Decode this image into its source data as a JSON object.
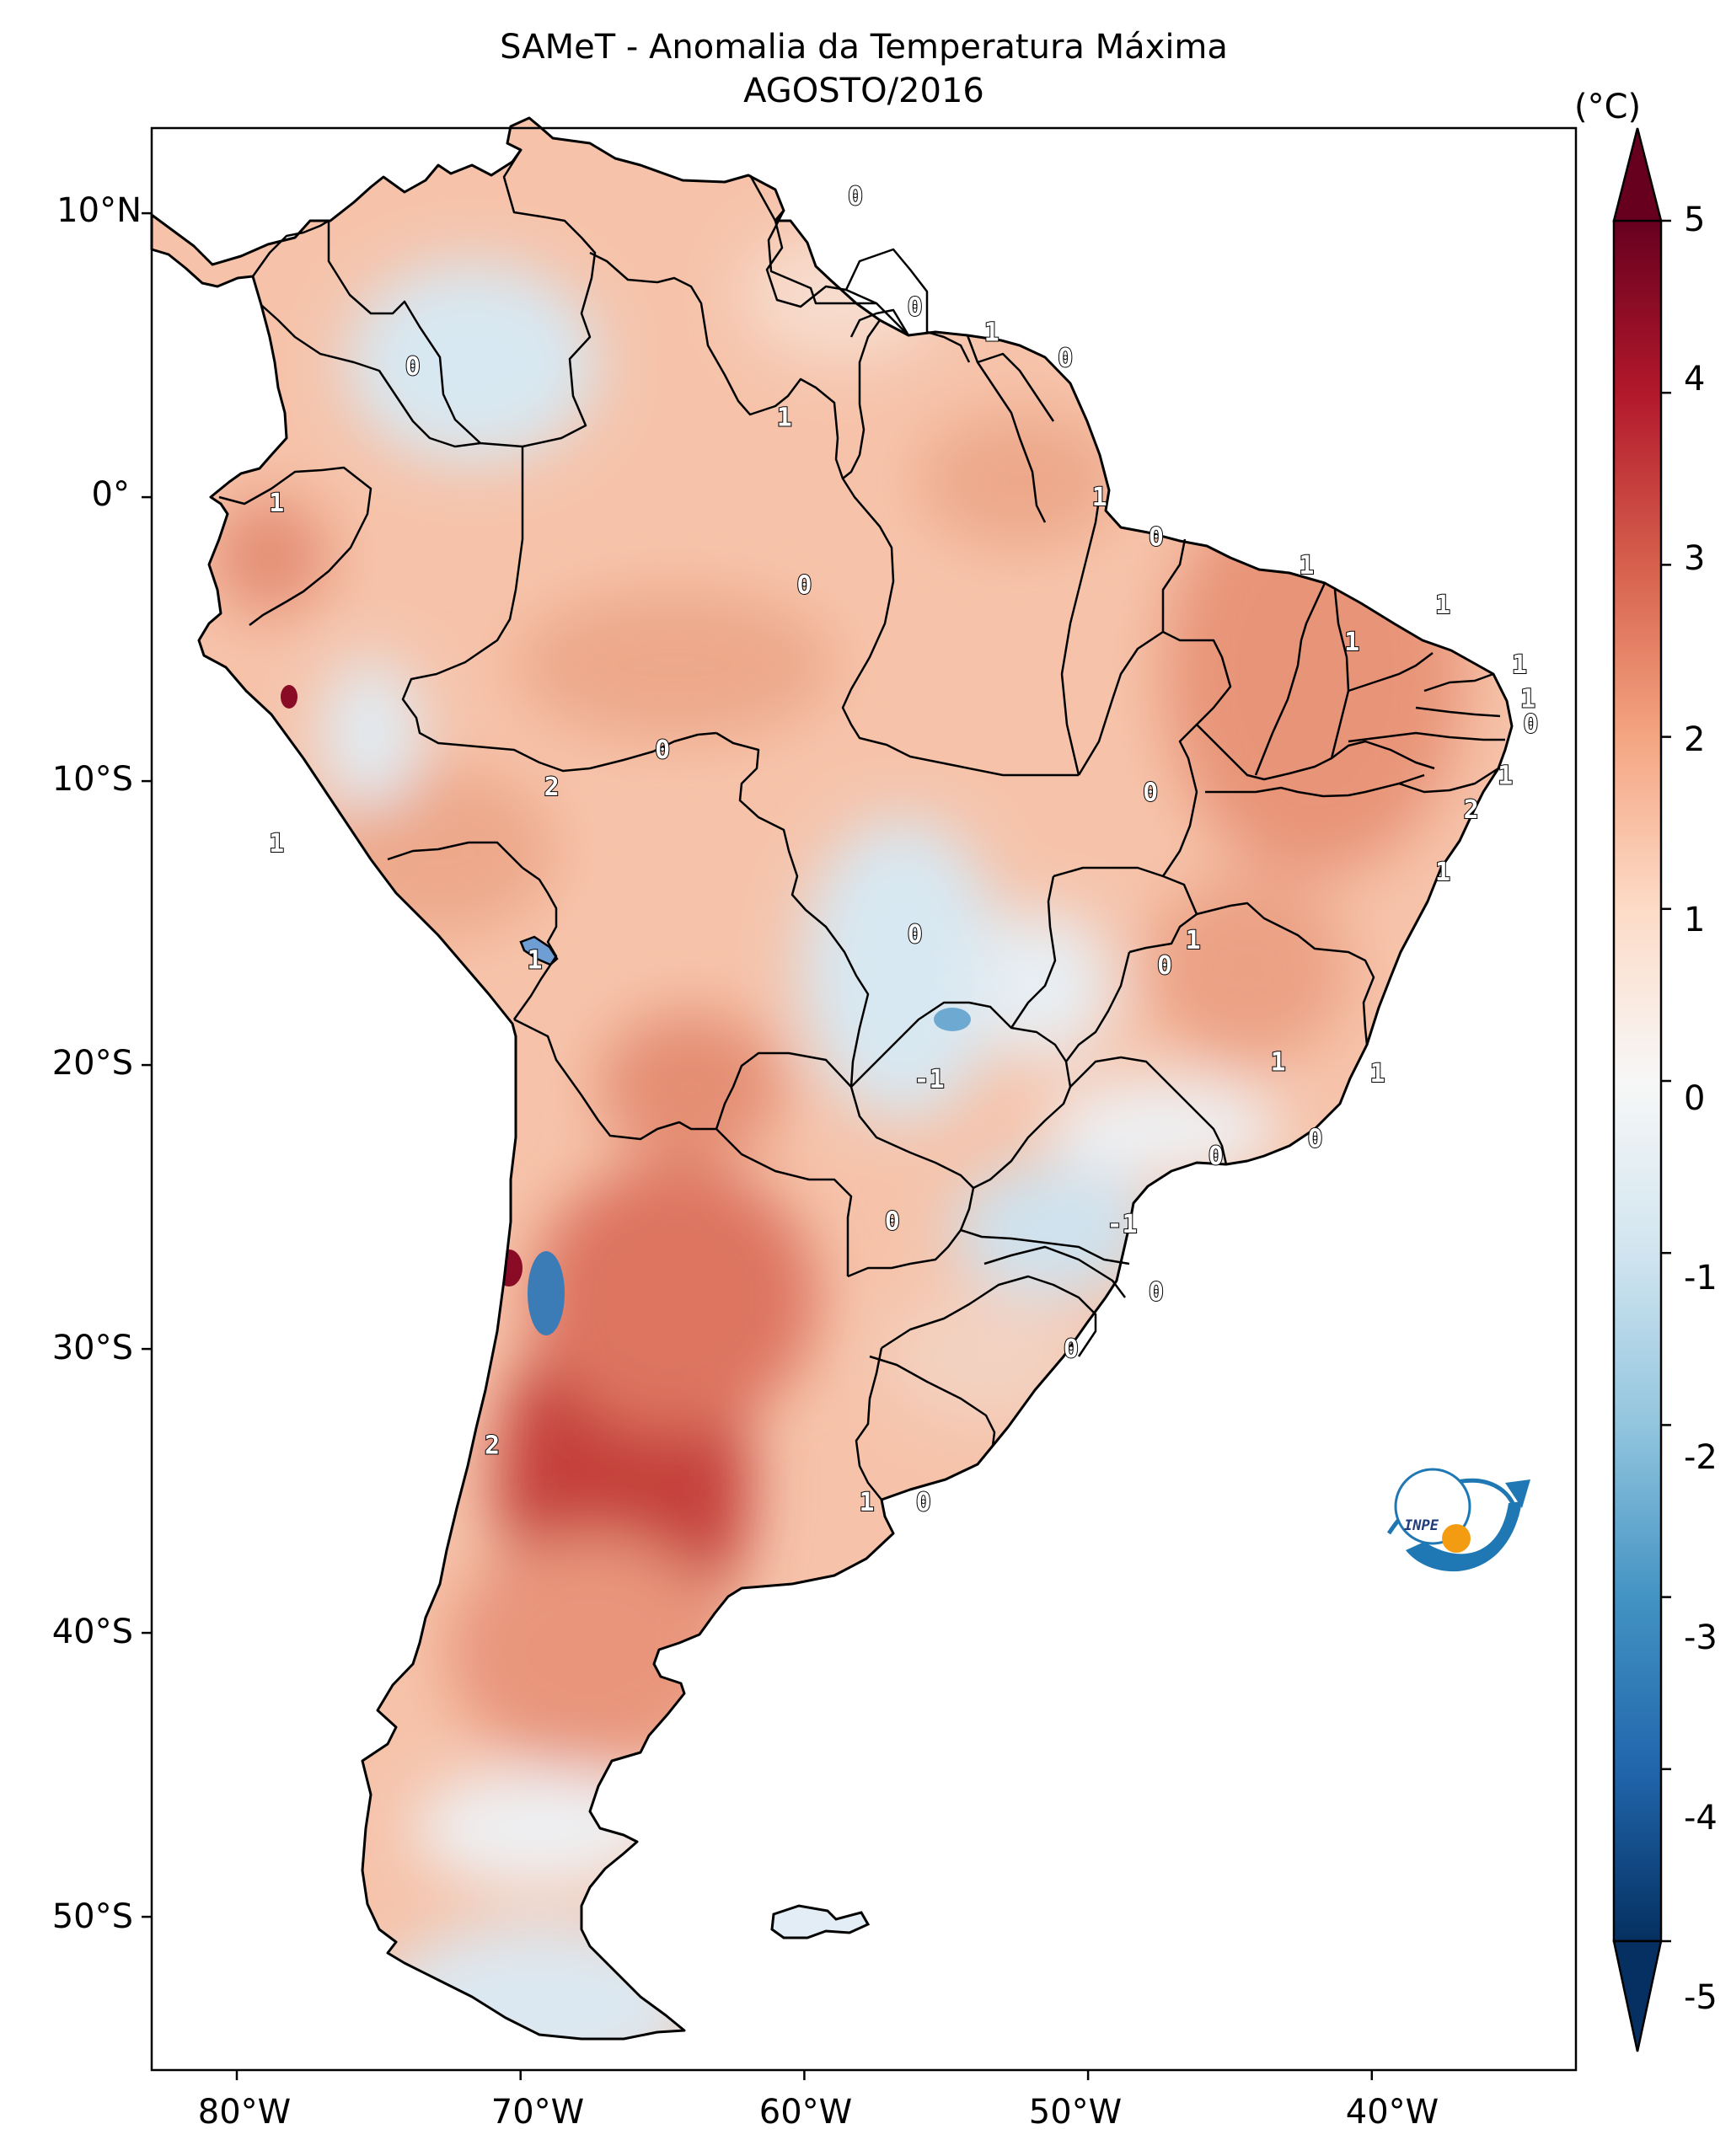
{
  "title": {
    "line1": "SAMeT - Anomalia da Temperatura Máxima",
    "line2": "AGOSTO/2016"
  },
  "colorbar": {
    "unit": "(°C)",
    "ticks": [
      "5",
      "4",
      "3",
      "2",
      "1",
      "0",
      "-1",
      "-2",
      "-3",
      "-4",
      "-5"
    ],
    "range": [
      -5,
      5
    ],
    "colors": [
      "#053061",
      "#2166ac",
      "#4393c3",
      "#92c5de",
      "#d1e5f0",
      "#f7f7f7",
      "#fddbc7",
      "#f4a582",
      "#d6604d",
      "#b2182b",
      "#67001f"
    ]
  },
  "axes": {
    "lat_ticks": [
      "10°N",
      "0°",
      "10°S",
      "20°S",
      "30°S",
      "40°S",
      "50°S"
    ],
    "lon_ticks": [
      "80°W",
      "70°W",
      "60°W",
      "50°W",
      "40°W"
    ]
  },
  "contour_labels": [
    {
      "text": "0",
      "lon": -58.2,
      "lat": 10.6
    },
    {
      "text": "0",
      "lon": -73.8,
      "lat": 4.6
    },
    {
      "text": "0",
      "lon": -56.1,
      "lat": 6.7
    },
    {
      "text": "1",
      "lon": -53.4,
      "lat": 5.8
    },
    {
      "text": "0",
      "lon": -50.8,
      "lat": 4.9
    },
    {
      "text": "1",
      "lon": -60.7,
      "lat": 2.8
    },
    {
      "text": "1",
      "lon": -78.6,
      "lat": -0.2
    },
    {
      "text": "1",
      "lon": -49.6,
      "lat": 0.0
    },
    {
      "text": "0",
      "lon": -47.6,
      "lat": -1.4
    },
    {
      "text": "0",
      "lon": -60.0,
      "lat": -3.1
    },
    {
      "text": "1",
      "lon": -42.3,
      "lat": -2.4
    },
    {
      "text": "1",
      "lon": -37.5,
      "lat": -3.8
    },
    {
      "text": "1",
      "lon": -40.7,
      "lat": -5.1
    },
    {
      "text": "1",
      "lon": -34.8,
      "lat": -5.9
    },
    {
      "text": "1",
      "lon": -34.5,
      "lat": -7.1
    },
    {
      "text": "0",
      "lon": -34.4,
      "lat": -8.0
    },
    {
      "text": "1",
      "lon": -35.3,
      "lat": -9.8
    },
    {
      "text": "2",
      "lon": -36.5,
      "lat": -11.0
    },
    {
      "text": "1",
      "lon": -37.5,
      "lat": -13.2
    },
    {
      "text": "0",
      "lon": -65.0,
      "lat": -8.9
    },
    {
      "text": "2",
      "lon": -68.9,
      "lat": -10.2
    },
    {
      "text": "1",
      "lon": -78.6,
      "lat": -12.2
    },
    {
      "text": "0",
      "lon": -47.8,
      "lat": -10.4
    },
    {
      "text": "0",
      "lon": -56.1,
      "lat": -15.4
    },
    {
      "text": "1",
      "lon": -46.3,
      "lat": -15.6
    },
    {
      "text": "0",
      "lon": -47.3,
      "lat": -16.5
    },
    {
      "text": "1",
      "lon": -69.5,
      "lat": -16.3
    },
    {
      "text": "-1",
      "lon": -55.6,
      "lat": -20.5
    },
    {
      "text": "1",
      "lon": -43.3,
      "lat": -19.9
    },
    {
      "text": "1",
      "lon": -39.8,
      "lat": -20.3
    },
    {
      "text": "0",
      "lon": -45.5,
      "lat": -23.2
    },
    {
      "text": "0",
      "lon": -42.0,
      "lat": -22.6
    },
    {
      "text": "0",
      "lon": -56.9,
      "lat": -25.5
    },
    {
      "text": "-1",
      "lon": -48.8,
      "lat": -25.6
    },
    {
      "text": "0",
      "lon": -47.6,
      "lat": -28.0
    },
    {
      "text": "0",
      "lon": -50.6,
      "lat": -30.0
    },
    {
      "text": "2",
      "lon": -71.0,
      "lat": -33.4
    },
    {
      "text": "1",
      "lon": -57.8,
      "lat": -35.4
    },
    {
      "text": "0",
      "lon": -55.8,
      "lat": -35.4
    }
  ],
  "logo": {
    "text": "INPE"
  }
}
